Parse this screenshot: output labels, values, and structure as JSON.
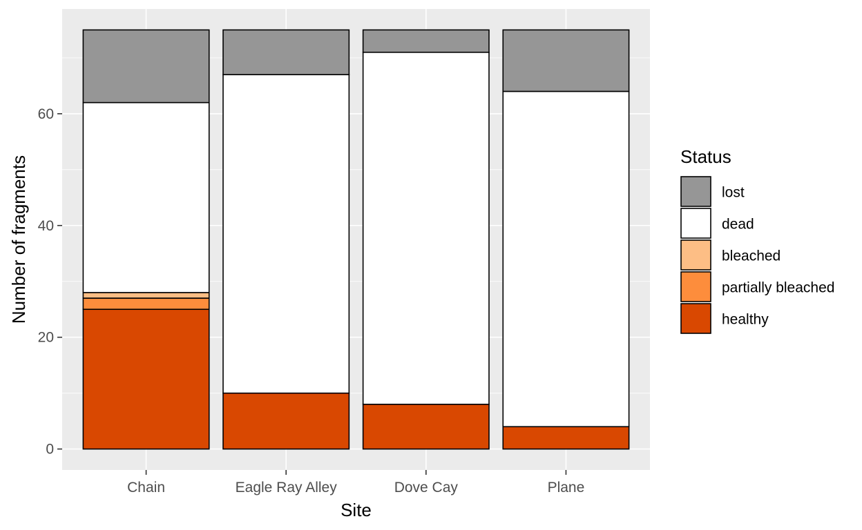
{
  "chart_data": {
    "type": "bar",
    "stacked": true,
    "categories": [
      "Chain",
      "Eagle Ray Alley",
      "Dove Cay",
      "Plane"
    ],
    "series": [
      {
        "name": "healthy",
        "color": "#d94801",
        "values": [
          25,
          10,
          8,
          4
        ]
      },
      {
        "name": "partially bleached",
        "color": "#fd8d3c",
        "values": [
          2,
          0,
          0,
          0
        ]
      },
      {
        "name": "bleached",
        "color": "#fdbe85",
        "values": [
          1,
          0,
          0,
          0
        ]
      },
      {
        "name": "dead",
        "color": "#ffffff",
        "values": [
          34,
          57,
          63,
          60
        ]
      },
      {
        "name": "lost",
        "color": "#969696",
        "values": [
          13,
          8,
          4,
          11
        ]
      }
    ],
    "xlabel": "Site",
    "ylabel": "Number of fragments",
    "ylim": [
      -3.75,
      78.75
    ],
    "yticks": [
      0,
      20,
      40,
      60
    ],
    "grid": true,
    "legend": {
      "title": "Status",
      "position": "right",
      "order": [
        "lost",
        "dead",
        "bleached",
        "partially bleached",
        "healthy"
      ]
    }
  }
}
